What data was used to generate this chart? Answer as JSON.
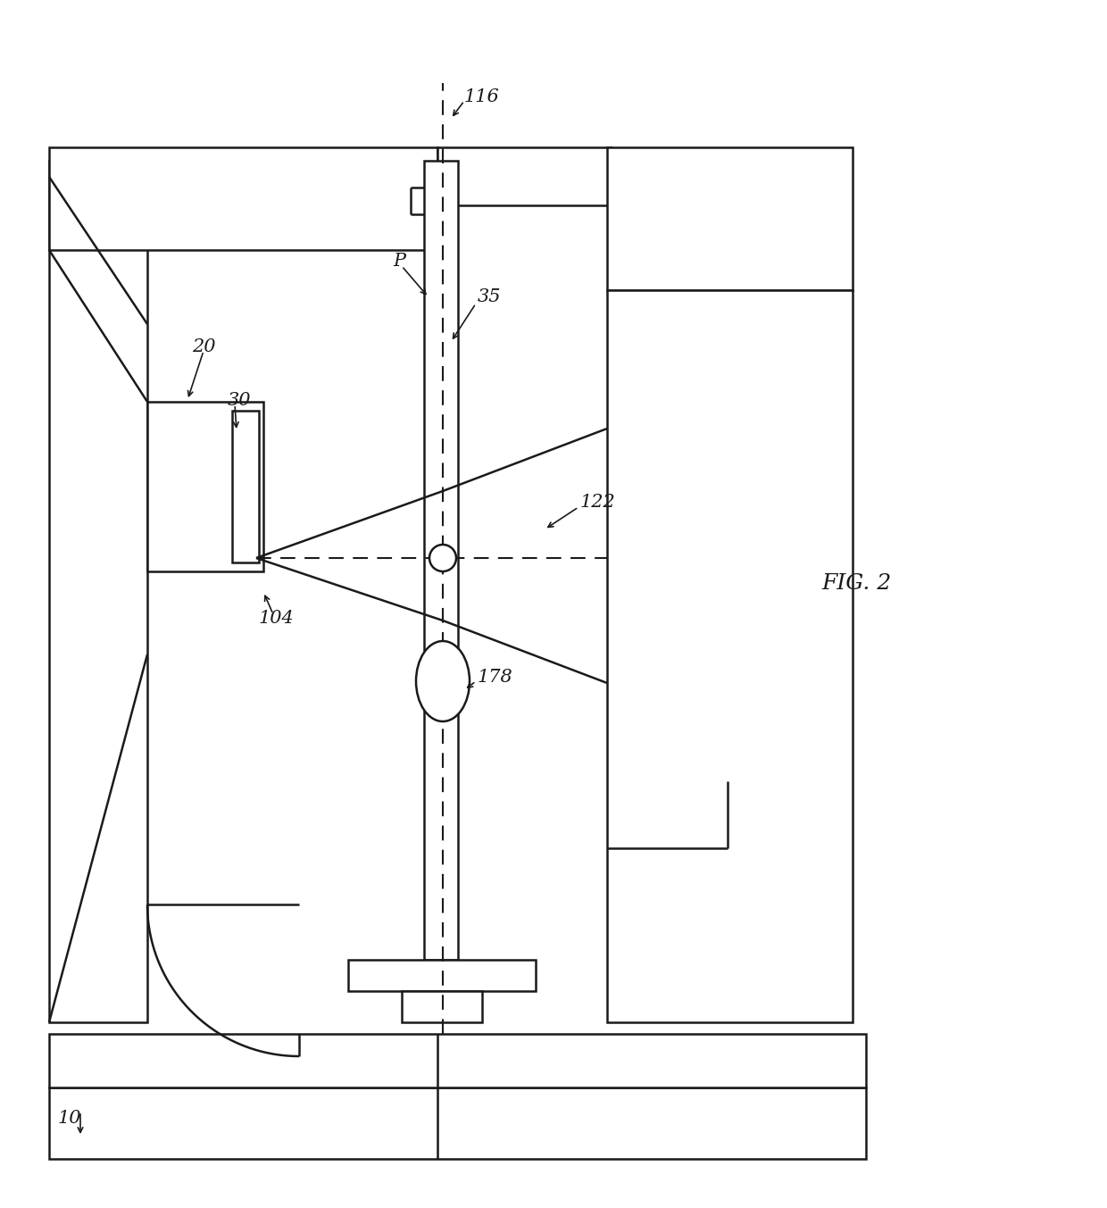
{
  "bg_color": "#ffffff",
  "line_color": "#1a1a1a",
  "fig_label": "FIG. 2",
  "lw": 1.8,
  "font_size": 15
}
